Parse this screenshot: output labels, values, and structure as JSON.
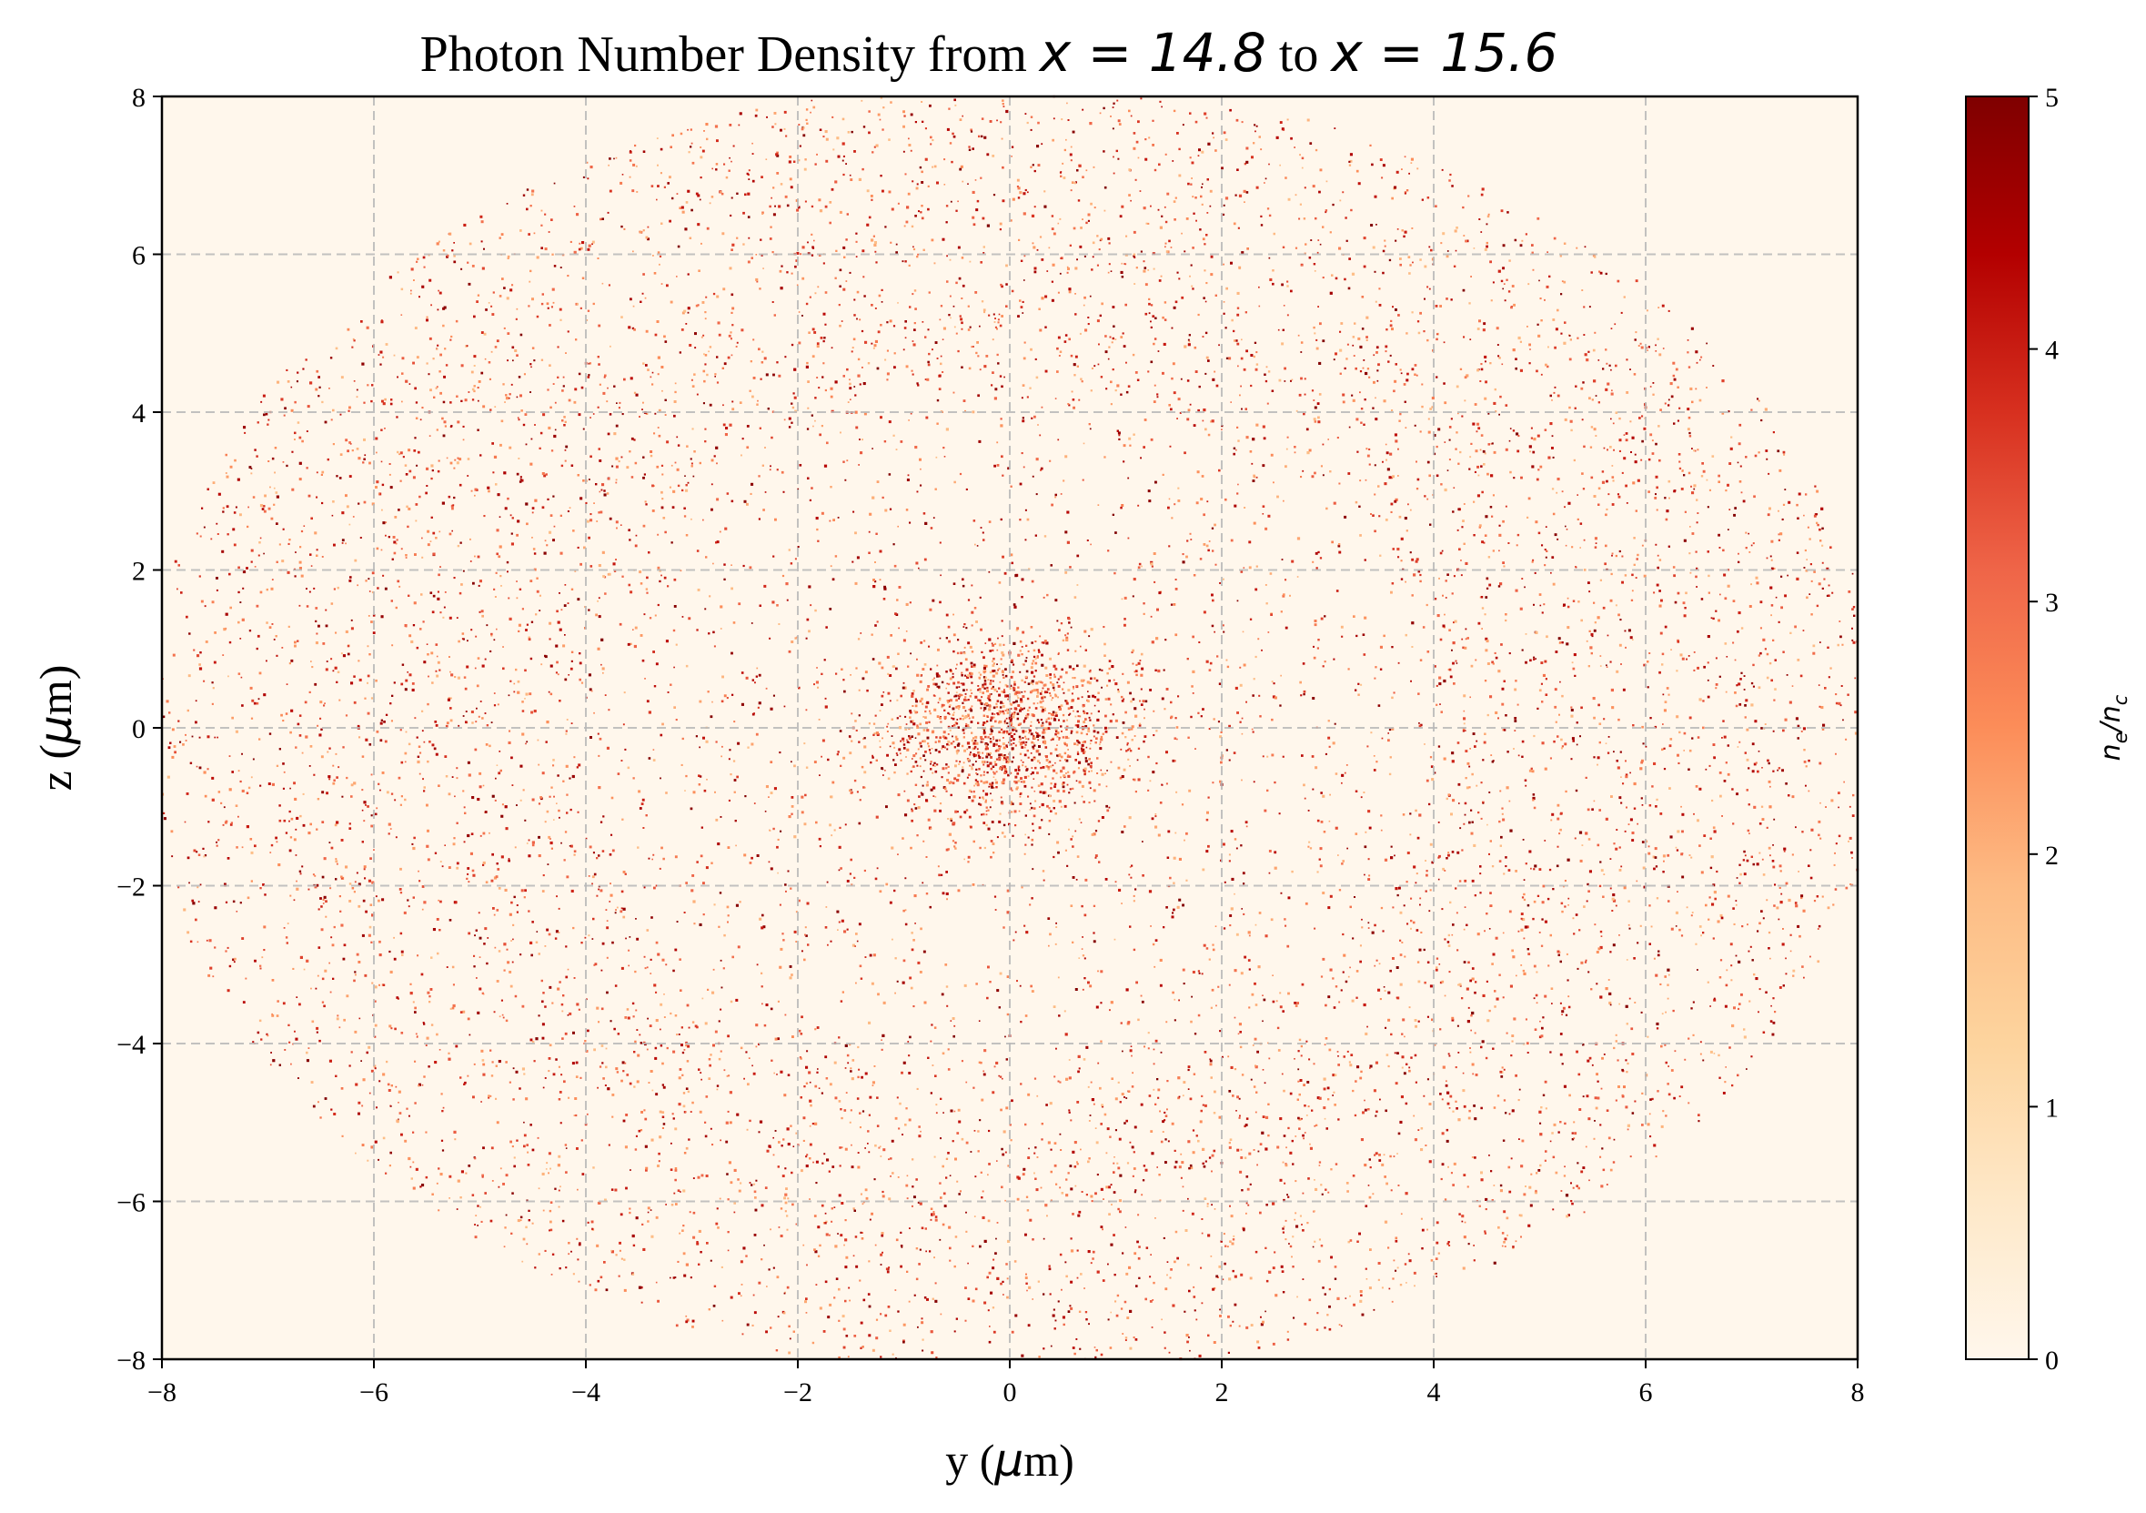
{
  "chart_data": {
    "type": "heatmap",
    "title": {
      "text_prefix": "Photon Number Density from ",
      "math_start": "x = 14.8",
      "connector": " to ",
      "math_end": "x = 15.6"
    },
    "xlabel": {
      "prefix": "y (",
      "math": "μ",
      "suffix": "m)"
    },
    "ylabel": {
      "prefix": "z (",
      "math": "μ",
      "suffix": "m)"
    },
    "xlim": [
      -8,
      8
    ],
    "ylim": [
      -8,
      8
    ],
    "xticks": [
      -8,
      -6,
      -4,
      -2,
      0,
      2,
      4,
      6,
      8
    ],
    "yticks": [
      -8,
      -6,
      -4,
      -2,
      0,
      2,
      4,
      6,
      8
    ],
    "xtick_labels": [
      "−8",
      "−6",
      "−4",
      "−2",
      "0",
      "2",
      "4",
      "6",
      "8"
    ],
    "ytick_labels": [
      "−8",
      "−6",
      "−4",
      "−2",
      "0",
      "2",
      "4",
      "6",
      "8"
    ],
    "grid": true,
    "grid_style": "dashed",
    "colormap": "OrRd",
    "colormap_stops": [
      "#fff7ec",
      "#fee8c8",
      "#fdd49e",
      "#fdbb84",
      "#fc8d59",
      "#ef6548",
      "#d7301f",
      "#b30000",
      "#7f0000"
    ],
    "colorbar": {
      "label": "n_e/n_c",
      "range": [
        0,
        5
      ],
      "ticks": [
        0,
        1,
        2,
        3,
        4,
        5
      ],
      "tick_labels": [
        "0",
        "1",
        "2",
        "3",
        "4",
        "5"
      ]
    },
    "distribution": {
      "description_values": "sparse speckle of photon density; dense cluster near center, ring of radius about 7",
      "center": [
        0,
        0
      ],
      "core_radius": 0.6,
      "ring_radius": 7.0,
      "max_value": 5
    }
  }
}
